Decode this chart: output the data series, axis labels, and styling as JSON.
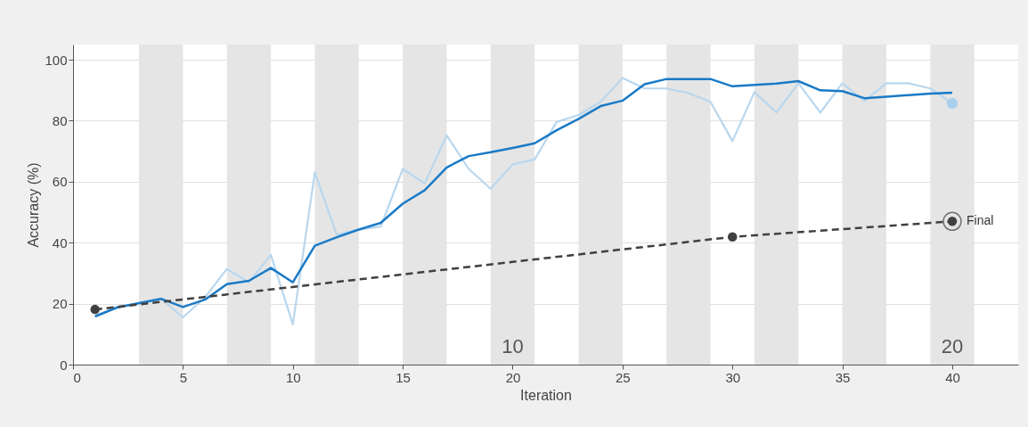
{
  "chart_data": {
    "type": "line",
    "xlabel": "Iteration",
    "ylabel": "Accuracy (%)",
    "xlim": [
      0,
      43
    ],
    "ylim": [
      0,
      105
    ],
    "xticks": [
      0,
      5,
      10,
      15,
      20,
      25,
      30,
      35,
      40
    ],
    "yticks": [
      0,
      20,
      40,
      60,
      80,
      100
    ],
    "grid": "y",
    "series": [
      {
        "color": "#b9d7ee",
        "marker": "none",
        "line_style": "solid",
        "x": [
          1,
          2,
          3,
          4,
          5,
          6,
          7,
          8,
          9,
          10,
          11,
          12,
          13,
          14,
          15,
          16,
          17,
          18,
          19,
          20,
          21,
          22,
          23,
          24,
          25,
          26,
          27,
          28,
          29,
          30,
          31,
          32,
          33,
          34,
          35,
          36,
          37,
          38,
          39,
          40
        ],
        "values": [
          16,
          19,
          20,
          21.6,
          15.5,
          22,
          31.4,
          27,
          36,
          13.2,
          63,
          42.6,
          44.3,
          45.3,
          64.2,
          59.4,
          75.2,
          64.2,
          57.7,
          65.7,
          67.3,
          79.6,
          81.9,
          86.2,
          94,
          90.6,
          90.6,
          89.1,
          86.2,
          73.3,
          89.4,
          82.7,
          92.3,
          82.7,
          92.3,
          86.5,
          92.3,
          92.3,
          90.6,
          85.7
        ]
      },
      {
        "color": "#1a7ac6",
        "marker": "none",
        "line_style": "solid",
        "x": [
          1,
          2,
          3,
          4,
          5,
          6,
          7,
          8,
          9,
          10,
          11,
          12,
          13,
          14,
          15,
          16,
          17,
          18,
          19,
          20,
          21,
          22,
          23,
          24,
          25,
          26,
          27,
          28,
          29,
          30,
          31,
          32,
          33,
          34,
          35,
          36,
          37,
          38,
          39,
          40
        ],
        "values": [
          15.8,
          18.7,
          20.2,
          21.6,
          18.9,
          21.3,
          26.4,
          27.5,
          31.7,
          27,
          39,
          41.8,
          44.3,
          46.5,
          52.8,
          57.2,
          64.7,
          68.4,
          69.7,
          71.1,
          72.6,
          76.9,
          80.6,
          84.8,
          86.6,
          92,
          93.7,
          93.7,
          93.7,
          91.3,
          91.8,
          92.2,
          93,
          90,
          89.7,
          87.4,
          87.9,
          88.4,
          88.9,
          89.2
        ]
      },
      {
        "type": "scatter",
        "color": "#a8d0ee",
        "marker": "circle",
        "x": [
          40
        ],
        "values": [
          85.7
        ]
      },
      {
        "color": "#404040",
        "marker": "circle",
        "line_style": "dashed",
        "x": [
          1,
          30,
          40
        ],
        "values": [
          18.1,
          41.9,
          47
        ]
      }
    ],
    "bands": [
      {
        "axis": "x",
        "from": 3,
        "to": 5,
        "color": "#e5e5e5"
      },
      {
        "axis": "x",
        "from": 7,
        "to": 9,
        "color": "#e5e5e5"
      },
      {
        "axis": "x",
        "from": 11,
        "to": 13,
        "color": "#e5e5e5"
      },
      {
        "axis": "x",
        "from": 15,
        "to": 17,
        "color": "#e5e5e5"
      },
      {
        "axis": "x",
        "from": 19,
        "to": 21,
        "color": "#e5e5e5",
        "label": "10"
      },
      {
        "axis": "x",
        "from": 23,
        "to": 25,
        "color": "#e5e5e5"
      },
      {
        "axis": "x",
        "from": 27,
        "to": 29,
        "color": "#e5e5e5"
      },
      {
        "axis": "x",
        "from": 31,
        "to": 33,
        "color": "#e5e5e5"
      },
      {
        "axis": "x",
        "from": 35,
        "to": 37,
        "color": "#e5e5e5"
      },
      {
        "axis": "x",
        "from": 39,
        "to": 41,
        "color": "#e5e5e5",
        "label": "20"
      }
    ],
    "annotations": [
      {
        "text": "Final",
        "x": 40,
        "y": 47
      }
    ]
  }
}
